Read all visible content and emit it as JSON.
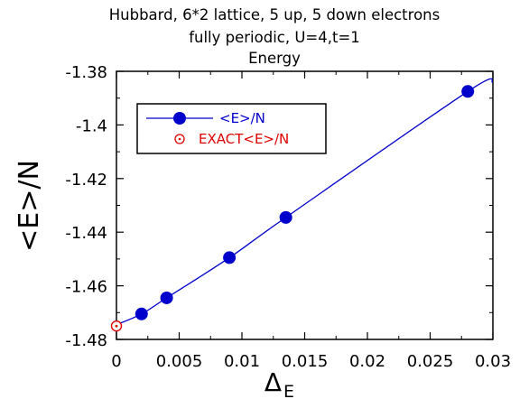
{
  "chart_data": {
    "type": "line",
    "title_lines": [
      "Hubbard,  6*2  lattice,  5  up,  5  down  electrons",
      "fully   periodic,   U=4,t=1",
      "Energy"
    ],
    "xlabel": "Δ",
    "xlabel_sub": "E",
    "ylabel": "<E>/N",
    "xlim": [
      0,
      0.03
    ],
    "ylim": [
      -1.48,
      -1.38
    ],
    "x_ticks": [
      0,
      0.005,
      0.01,
      0.015,
      0.02,
      0.025,
      0.03
    ],
    "x_tick_labels": [
      "0",
      "0.005",
      "0.01",
      "0.015",
      "0.02",
      "0.025",
      "0.03"
    ],
    "y_ticks": [
      -1.38,
      -1.4,
      -1.42,
      -1.44,
      -1.46,
      -1.48
    ],
    "y_tick_labels": [
      "-1.38",
      "-1.4",
      "-1.42",
      "-1.44",
      "-1.46",
      "-1.48"
    ],
    "grid": false,
    "legend_position": "top-left",
    "series": [
      {
        "name": "<E>/N",
        "color": "#0000cc",
        "marker": "filled-circle",
        "x": [
          0.002,
          0.004,
          0.009,
          0.0135,
          0.028
        ],
        "y": [
          -1.4705,
          -1.4645,
          -1.4495,
          -1.4345,
          -1.3875
        ],
        "fit_curve": {
          "x": [
            0,
            0.002,
            0.004,
            0.006,
            0.008,
            0.01,
            0.012,
            0.014,
            0.016,
            0.018,
            0.02,
            0.022,
            0.024,
            0.026,
            0.028,
            0.03
          ],
          "y": [
            -1.4745,
            -1.4705,
            -1.4648,
            -1.458,
            -1.4505,
            -1.4425,
            -1.4345,
            -1.4262,
            -1.418,
            -1.4098,
            -1.402,
            -1.3948,
            -1.388,
            -1.382,
            -1.3872,
            -1.384
          ]
        }
      },
      {
        "name": "EXACT<E>/N",
        "color": "#dd0000",
        "marker": "open-circle-dot",
        "x": [
          0
        ],
        "y": [
          -1.475
        ]
      }
    ]
  }
}
